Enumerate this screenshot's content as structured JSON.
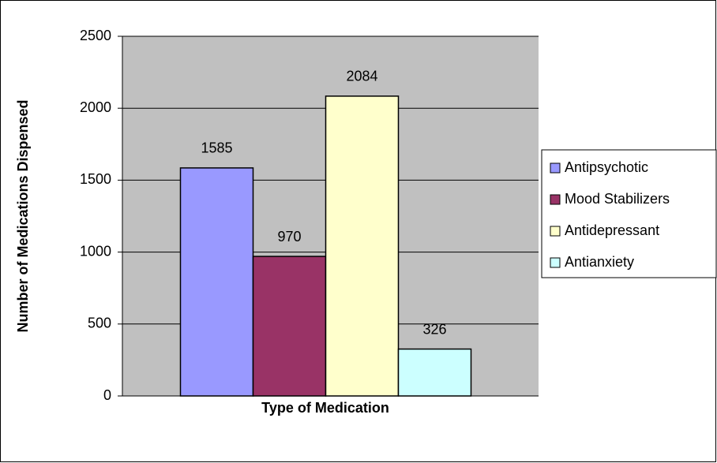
{
  "chart_data": {
    "type": "bar",
    "x_label": "Type of Medication",
    "y_label": "Number of Medications Dispensed",
    "categories": [
      null
    ],
    "series": [
      {
        "name": "Antipsychotic",
        "color": "#9999ff",
        "values": [
          1585
        ]
      },
      {
        "name": "Mood Stabilizers",
        "color": "#993366",
        "values": [
          970
        ]
      },
      {
        "name": "Antidepressant",
        "color": "#ffffcc",
        "values": [
          2084
        ]
      },
      {
        "name": "Antianxiety",
        "color": "#ccffff",
        "values": [
          326
        ]
      }
    ],
    "ylim": [
      0,
      2500
    ],
    "yticks": [
      0,
      500,
      1000,
      1500,
      2000,
      2500
    ],
    "grid": true,
    "legend": "right",
    "plot_background": "#c0c0c0"
  }
}
